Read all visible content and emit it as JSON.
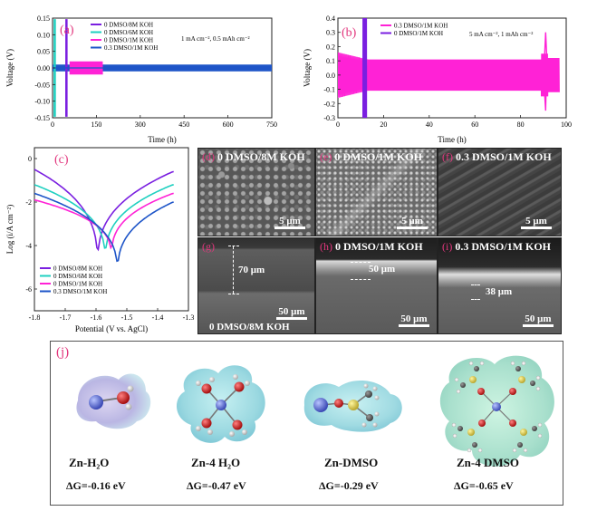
{
  "panel_a": {
    "letter": "(a)",
    "xlabel": "Time (h)",
    "ylabel": "Voltage (V)",
    "annotation": "1 mA cm⁻², 0.5 mAh cm⁻²",
    "xticks": [
      "0",
      "150",
      "300",
      "450",
      "600",
      "750"
    ],
    "yticks": [
      "0.15",
      "0.10",
      "0.05",
      "0.00",
      "-0.05",
      "-0.10",
      "-0.15"
    ]
  },
  "panel_b": {
    "letter": "(b)",
    "xlabel": "Time (h)",
    "ylabel": "Voltage (V)",
    "annotation": "5 mA cm⁻², 1 mAh cm⁻²",
    "xticks": [
      "0",
      "20",
      "40",
      "60",
      "80",
      "100"
    ],
    "yticks": [
      "0.4",
      "0.3",
      "0.2",
      "0.1",
      "0.0",
      "-0.1",
      "-0.2",
      "-0.3"
    ]
  },
  "panel_c": {
    "letter": "(c)",
    "xlabel": "Potential (V vs. AgCl)",
    "ylabel": "Log (i/A cm⁻²)",
    "xticks": [
      "-1.8",
      "-1.7",
      "-1.6",
      "-1.5",
      "-1.4",
      "-1.3"
    ],
    "yticks": [
      "0",
      "-2",
      "-4",
      "-6"
    ]
  },
  "sem": [
    {
      "letter": "(d)",
      "label": "0 DMSO/8M KOH",
      "scale": "5 μm"
    },
    {
      "letter": "(e)",
      "label": "0 DMSO/1M KOH",
      "scale": "5 μm"
    },
    {
      "letter": "(f)",
      "label": "0.3 DMSO/1M KOH",
      "scale": "5 μm"
    },
    {
      "letter": "(g)",
      "label": "0 DMSO/8M KOH",
      "scale": "50 μm",
      "thickness": "70 μm"
    },
    {
      "letter": "(h)",
      "label": "0 DMSO/1M KOH",
      "scale": "50 μm",
      "thickness": "50 μm"
    },
    {
      "letter": "(i)",
      "label": "0.3 DMSO/1M KOH",
      "scale": "50 μm",
      "thickness": "38 μm"
    }
  ],
  "panel_j": {
    "letter": "(j)",
    "molecules": [
      {
        "name": "Zn-H₂O",
        "dg": "ΔG=-0.16 eV"
      },
      {
        "name": "Zn-4 H₂O",
        "dg": "ΔG=-0.47 eV"
      },
      {
        "name": "Zn-DMSO",
        "dg": "ΔG=-0.29 eV"
      },
      {
        "name": "Zn-4 DMSO",
        "dg": "ΔG=-0.65 eV"
      }
    ]
  },
  "colors": {
    "magenta": "#ff22d6",
    "purple": "#7a1fe0",
    "cyan": "#1fd0c0",
    "blue": "#1e55c8",
    "label": "#e2367d"
  },
  "chart_data": [
    {
      "type": "line",
      "title": "",
      "xlabel": "Time (h)",
      "ylabel": "Voltage (V)",
      "xlim": [
        0,
        750
      ],
      "ylim": [
        -0.15,
        0.15
      ],
      "legend_position": "top-left",
      "series": [
        {
          "name": "0 DMSO/8M KOH",
          "color": "#7a1fe0",
          "end_h": 20,
          "amplitude_v": 0.15
        },
        {
          "name": "0 DMSO/6M KOH",
          "color": "#1fd0c0",
          "end_h": 10,
          "amplitude_v": 0.15
        },
        {
          "name": "0 DMSO/1M KOH",
          "color": "#ff22d6",
          "end_h": 170,
          "amplitude_v": 0.02
        },
        {
          "name": "0.3 DMSO/1M KOH",
          "color": "#1e55c8",
          "end_h": 750,
          "amplitude_v": 0.01
        }
      ]
    },
    {
      "type": "line",
      "title": "",
      "xlabel": "Time (h)",
      "ylabel": "Voltage (V)",
      "xlim": [
        0,
        100
      ],
      "ylim": [
        -0.3,
        0.4
      ],
      "legend_position": "top-right",
      "series": [
        {
          "name": "0.3 DMSO/1M KOH",
          "color": "#ff22d6",
          "end_h": 97,
          "amplitude_v": 0.15,
          "spike_at_h": 91,
          "spike_v": 0.3
        },
        {
          "name": "0 DMSO/1M KOH",
          "color": "#7a1fe0",
          "end_h": 12,
          "amplitude_v": 0.4
        }
      ]
    },
    {
      "type": "line",
      "title": "",
      "xlabel": "Potential (V vs. AgCl)",
      "ylabel": "Log (i/A cm⁻²)",
      "xlim": [
        -1.8,
        -1.3
      ],
      "ylim": [
        -7,
        0.5
      ],
      "legend_position": "bottom-left",
      "series": [
        {
          "name": "0 DMSO/8M KOH",
          "color": "#7a1fe0",
          "ecorr_v": -1.595,
          "min_log_i": -5.0,
          "cathodic_end": -0.5,
          "anodic_end": -0.6
        },
        {
          "name": "0 DMSO/6M KOH",
          "color": "#1fd0c0",
          "ecorr_v": -1.57,
          "min_log_i": -4.8,
          "cathodic_end": -1.2,
          "anodic_end": -1.2
        },
        {
          "name": "0 DMSO/1M KOH",
          "color": "#ff22d6",
          "ecorr_v": -1.55,
          "min_log_i": -4.6,
          "cathodic_end": -1.9,
          "anodic_end": -1.6
        },
        {
          "name": "0.3 DMSO/1M KOH",
          "color": "#1e55c8",
          "ecorr_v": -1.53,
          "min_log_i": -5.4,
          "cathodic_end": -1.6,
          "anodic_end": -2.0
        }
      ]
    }
  ]
}
